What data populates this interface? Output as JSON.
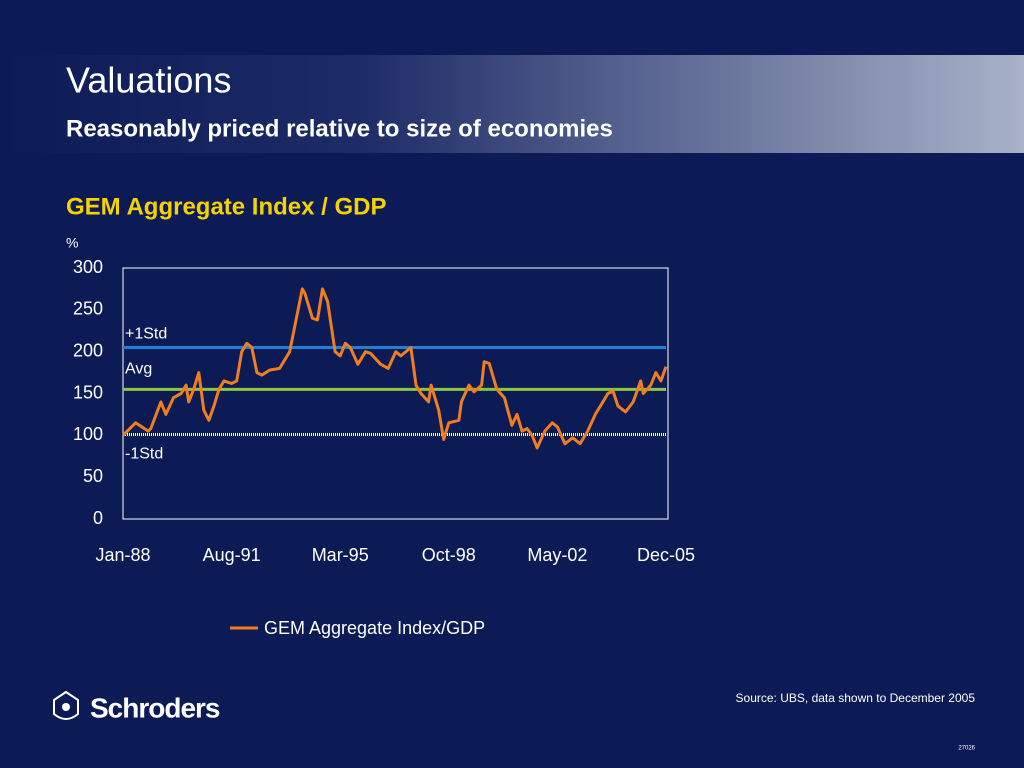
{
  "header": {
    "title": "Valuations",
    "subtitle": "Reasonably priced relative to size of economies"
  },
  "chart_data": {
    "type": "line",
    "title": "GEM Aggregate Index / GDP",
    "y_unit": "%",
    "x": [
      0,
      5,
      10,
      11,
      15,
      17,
      20,
      23,
      25,
      26,
      28,
      30,
      32,
      34,
      36,
      38,
      40,
      43,
      45,
      47,
      49,
      51,
      53,
      55,
      58,
      62,
      66,
      68,
      71,
      72,
      75,
      77,
      79,
      81,
      84,
      86,
      88,
      90,
      93,
      96,
      98,
      102,
      105,
      108,
      110,
      114,
      116,
      118,
      121,
      122,
      125,
      127,
      129,
      133,
      134,
      137,
      139,
      142,
      143,
      145,
      148,
      151,
      154,
      156,
      158,
      160,
      162,
      164,
      167,
      170,
      172,
      175,
      178,
      181,
      184,
      187,
      190,
      192,
      194,
      196,
      199,
      202,
      205,
      206,
      209,
      211,
      213,
      215
    ],
    "series": [
      {
        "name": "GEM Aggregate Index/GDP",
        "color": "#f07d1e",
        "values": [
          100,
          115,
          105,
          108,
          140,
          125,
          145,
          150,
          160,
          140,
          155,
          175,
          130,
          118,
          135,
          155,
          165,
          162,
          165,
          200,
          210,
          205,
          175,
          172,
          178,
          180,
          200,
          230,
          275,
          270,
          240,
          238,
          275,
          260,
          200,
          195,
          210,
          205,
          185,
          200,
          198,
          185,
          180,
          200,
          195,
          205,
          160,
          150,
          140,
          160,
          130,
          95,
          115,
          118,
          140,
          160,
          152,
          160,
          188,
          186,
          155,
          145,
          112,
          125,
          105,
          108,
          100,
          85,
          105,
          115,
          110,
          90,
          97,
          90,
          105,
          125,
          140,
          150,
          153,
          135,
          128,
          140,
          165,
          150,
          160,
          175,
          165,
          182
        ]
      }
    ],
    "reference_lines": [
      {
        "label": "+1Std",
        "value": 205,
        "color": "#1f7fd4",
        "style": "solid"
      },
      {
        "label": "Avg",
        "value": 155,
        "color": "#8cc63f",
        "style": "solid"
      },
      {
        "label": "-1Std",
        "value": 101,
        "color": "#ffffff",
        "style": "dotted"
      }
    ],
    "xlim": [
      0,
      215
    ],
    "xticks": [
      {
        "value": 0,
        "label": "Jan-88"
      },
      {
        "value": 43,
        "label": "Aug-91"
      },
      {
        "value": 86,
        "label": "Mar-95"
      },
      {
        "value": 129,
        "label": "Oct-98"
      },
      {
        "value": 172,
        "label": "May-02"
      },
      {
        "value": 215,
        "label": "Dec-05"
      }
    ],
    "ylim": [
      0,
      300
    ],
    "yticks": [
      0,
      50,
      100,
      150,
      200,
      250,
      300
    ],
    "grid": false,
    "legend": "bottom"
  },
  "footer": {
    "source": "Source: UBS, data shown to December 2005",
    "brand": "Schroders",
    "doc_code": "27026"
  }
}
